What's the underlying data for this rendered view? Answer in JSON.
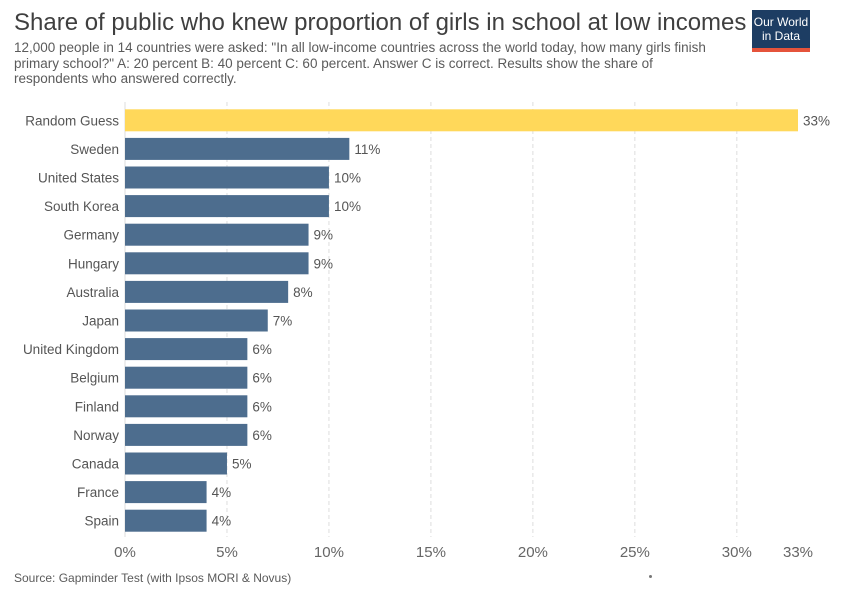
{
  "header": {
    "title": "Share of public who knew proportion of girls in school at low incomes",
    "subtitle": "12,000 people in 14 countries were asked: \"In all low-income countries across the world today, how many girls finish primary school?\" A: 20 percent B: 40 percent C: 60 percent. Answer C is correct. Results show the share of respondents who answered correctly."
  },
  "logo": {
    "line1": "Our World",
    "line2": "in Data"
  },
  "footer": {
    "source": "Source: Gapminder Test (with Ipsos MORI & Novus)"
  },
  "colors": {
    "highlight": "#ffd85a",
    "bar": "#4d6d8e",
    "grid": "#dddddd"
  },
  "chart_data": {
    "type": "bar",
    "orientation": "horizontal",
    "categories": [
      "Random Guess",
      "Sweden",
      "United States",
      "South Korea",
      "Germany",
      "Hungary",
      "Australia",
      "Japan",
      "United Kingdom",
      "Belgium",
      "Finland",
      "Norway",
      "Canada",
      "France",
      "Spain"
    ],
    "values": [
      33,
      11,
      10,
      10,
      9,
      9,
      8,
      7,
      6,
      6,
      6,
      6,
      5,
      4,
      4
    ],
    "value_labels": [
      "33%",
      "11%",
      "10%",
      "10%",
      "9%",
      "9%",
      "8%",
      "7%",
      "6%",
      "6%",
      "6%",
      "6%",
      "5%",
      "4%",
      "4%"
    ],
    "highlight_category": "Random Guess",
    "xlim": [
      0,
      33
    ],
    "x_ticks": [
      0,
      5,
      10,
      15,
      20,
      25,
      30,
      33
    ],
    "x_tick_labels": [
      "0%",
      "5%",
      "10%",
      "15%",
      "20%",
      "25%",
      "30%",
      "33%"
    ],
    "grid": true
  }
}
